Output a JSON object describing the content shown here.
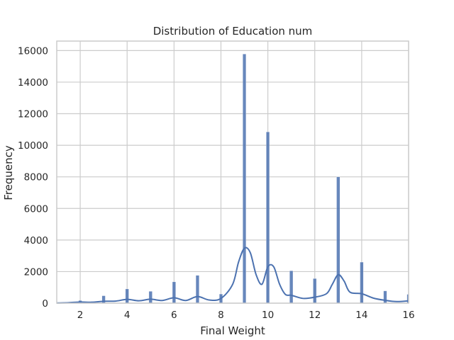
{
  "chart_data": {
    "type": "bar",
    "title": "Distribution of Education num",
    "xlabel": "Final Weight",
    "ylabel": "Frequency",
    "xlim": [
      1,
      16
    ],
    "ylim": [
      0,
      16600
    ],
    "xticks": [
      2,
      4,
      6,
      8,
      10,
      12,
      14,
      16
    ],
    "yticks": [
      0,
      2000,
      4000,
      6000,
      8000,
      10000,
      12000,
      14000,
      16000
    ],
    "grid": true,
    "colors": {
      "bar": "#4c72b0",
      "kde": "#4c72b0",
      "grid": "#cccccc",
      "spine": "#cccccc"
    },
    "series": [
      {
        "type": "histogram",
        "x": [
          1,
          2,
          3,
          4,
          5,
          6,
          7,
          8,
          9,
          10,
          11,
          12,
          13,
          14,
          15,
          16
        ],
        "values": [
          50,
          170,
          470,
          900,
          750,
          1350,
          1760,
          580,
          15780,
          10850,
          2050,
          1560,
          8000,
          2600,
          780,
          560
        ]
      },
      {
        "type": "kde",
        "x": [
          1,
          1.5,
          2,
          2.5,
          3,
          3.5,
          4,
          4.5,
          5,
          5.5,
          6,
          6.5,
          7,
          7.5,
          8,
          8.5,
          8.75,
          9,
          9.25,
          9.5,
          9.75,
          10,
          10.25,
          10.5,
          10.75,
          11,
          11.5,
          12,
          12.5,
          12.75,
          13,
          13.25,
          13.5,
          14,
          14.5,
          15,
          15.5,
          16
        ],
        "values": [
          10,
          30,
          70,
          60,
          120,
          130,
          240,
          150,
          250,
          170,
          340,
          170,
          420,
          200,
          300,
          1200,
          2600,
          3480,
          3200,
          1800,
          1200,
          2300,
          2300,
          1200,
          550,
          500,
          300,
          380,
          600,
          1200,
          1800,
          1400,
          700,
          600,
          320,
          180,
          100,
          150
        ]
      }
    ]
  }
}
